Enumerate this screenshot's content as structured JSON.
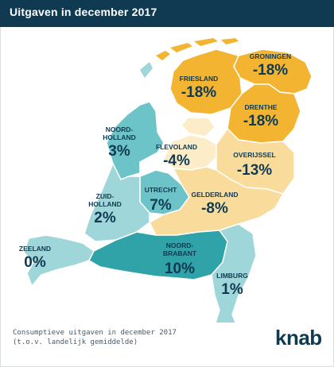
{
  "title": "Uitgaven in december 2017",
  "footnote": {
    "line1": "Consumptieve uitgaven in december 2017",
    "line2": "(t.o.v. landelijk gemiddelde)"
  },
  "logo": "knab",
  "colors": {
    "title_bar": "#0f3a52",
    "strong_negative": "#f2b431",
    "light_negative": "#f9dc9c",
    "pale_negative": "#fcedc8",
    "positive_light": "#9fd6d9",
    "positive_mid": "#6dc4c8",
    "positive_strong": "#2fa3a8",
    "label_dark": "#0f3a52"
  },
  "provinces": [
    {
      "key": "groningen",
      "name": "GRONINGEN",
      "value": "-18%"
    },
    {
      "key": "friesland",
      "name": "FRIESLAND",
      "value": "-18%"
    },
    {
      "key": "drenthe",
      "name": "DRENTHE",
      "value": "-18%"
    },
    {
      "key": "noord-holland",
      "name": "NOORD-\nHOLLAND",
      "value": "3%"
    },
    {
      "key": "flevoland",
      "name": "FLEVOLAND",
      "value": "-4%"
    },
    {
      "key": "overijssel",
      "name": "OVERIJSSEL",
      "value": "-13%"
    },
    {
      "key": "utrecht",
      "name": "UTRECHT",
      "value": "7%"
    },
    {
      "key": "gelderland",
      "name": "GELDERLAND",
      "value": "-8%"
    },
    {
      "key": "zuid-holland",
      "name": "ZUID-\nHOLLAND",
      "value": "2%"
    },
    {
      "key": "zeeland",
      "name": "ZEELAND",
      "value": "0%"
    },
    {
      "key": "noord-brabant",
      "name": "NOORD-\nBRABANT",
      "value": "10%"
    },
    {
      "key": "limburg",
      "name": "LIMBURG",
      "value": "1%"
    }
  ]
}
